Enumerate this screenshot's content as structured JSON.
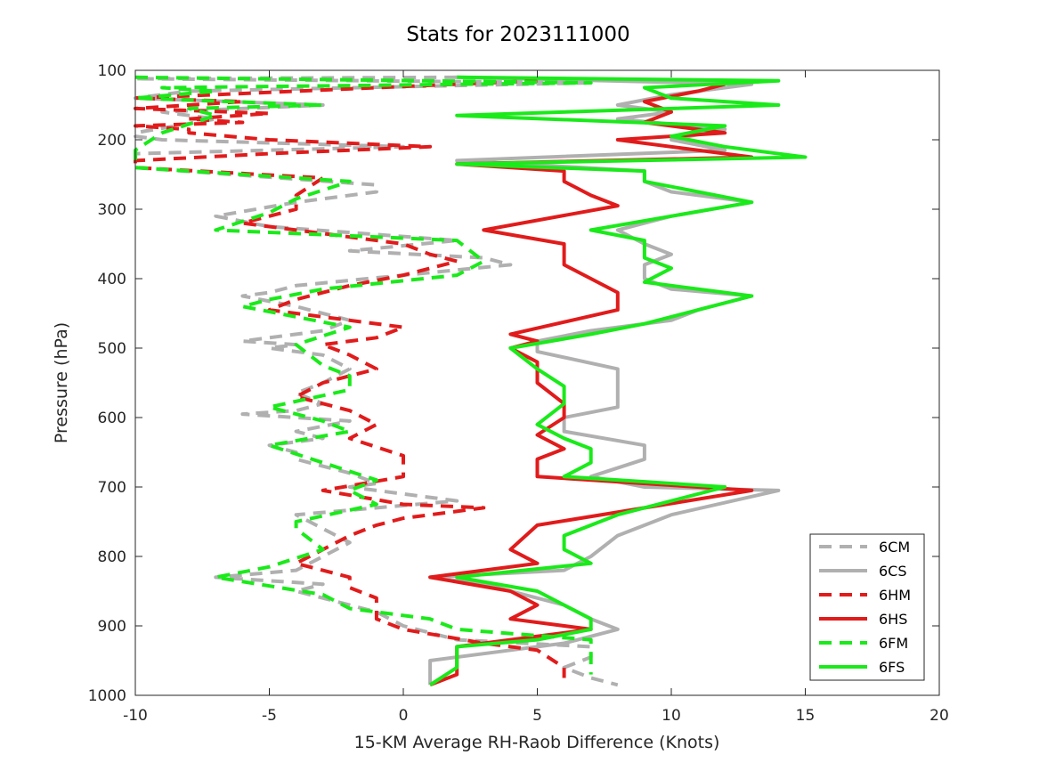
{
  "chart_data": {
    "type": "line",
    "title": "Stats for 2023111000",
    "xlabel": "15-KM Average RH-Raob Difference (Knots)",
    "ylabel": "Pressure (hPa)",
    "xlim": [
      -10,
      20
    ],
    "ylim": [
      100,
      1000
    ],
    "y_reversed": true,
    "grid": false,
    "legend_position": "bottom-right",
    "x_ticks": [
      -10,
      -5,
      0,
      5,
      10,
      15,
      20
    ],
    "y_ticks": [
      100,
      200,
      300,
      400,
      500,
      600,
      700,
      800,
      900,
      1000
    ],
    "series": [
      {
        "name": "6CM",
        "color": "#b0b0b0",
        "dash": true,
        "points": [
          [
            2,
            110
          ],
          [
            -10,
            112
          ],
          [
            7,
            118
          ],
          [
            -8,
            130
          ],
          [
            -10,
            140
          ],
          [
            -3,
            150
          ],
          [
            -9,
            160
          ],
          [
            -8,
            165
          ],
          [
            -7,
            170
          ],
          [
            -10,
            190
          ],
          [
            -10,
            195
          ],
          [
            -9,
            200
          ],
          [
            0,
            210
          ],
          [
            -10,
            220
          ],
          [
            -10,
            235
          ],
          [
            -10,
            240
          ],
          [
            -1,
            265
          ],
          [
            -1,
            275
          ],
          [
            -4,
            290
          ],
          [
            -7,
            310
          ],
          [
            -5,
            325
          ],
          [
            2,
            345
          ],
          [
            -2,
            360
          ],
          [
            3,
            370
          ],
          [
            4,
            380
          ],
          [
            -4,
            410
          ],
          [
            -5,
            420
          ],
          [
            -6,
            425
          ],
          [
            -4,
            440
          ],
          [
            -2,
            460
          ],
          [
            -3,
            475
          ],
          [
            -6,
            490
          ],
          [
            -4,
            495
          ],
          [
            -5,
            500
          ],
          [
            -3,
            510
          ],
          [
            -2,
            530
          ],
          [
            -3,
            550
          ],
          [
            -4,
            565
          ],
          [
            -3,
            580
          ],
          [
            -4,
            590
          ],
          [
            -6,
            595
          ],
          [
            -2,
            605
          ],
          [
            -4,
            620
          ],
          [
            -3,
            630
          ],
          [
            -5,
            640
          ],
          [
            -4,
            650
          ],
          [
            -4,
            660
          ],
          [
            -2,
            680
          ],
          [
            -1,
            695
          ],
          [
            -2,
            700
          ],
          [
            2,
            720
          ],
          [
            -4,
            740
          ],
          [
            -3,
            760
          ],
          [
            -2,
            780
          ],
          [
            -3,
            800
          ],
          [
            -4,
            820
          ],
          [
            -7,
            830
          ],
          [
            -3,
            840
          ],
          [
            -4,
            850
          ],
          [
            -2,
            870
          ],
          [
            -1,
            880
          ],
          [
            0,
            900
          ],
          [
            2,
            920
          ],
          [
            7,
            930
          ],
          [
            7,
            945
          ],
          [
            6,
            960
          ],
          [
            7,
            975
          ],
          [
            8,
            985
          ]
        ]
      },
      {
        "name": "6CS",
        "color": "#b0b0b0",
        "dash": false,
        "points": [
          [
            2,
            110
          ],
          [
            13,
            120
          ],
          [
            10,
            135
          ],
          [
            8,
            150
          ],
          [
            10,
            160
          ],
          [
            8,
            170
          ],
          [
            12,
            185
          ],
          [
            10,
            200
          ],
          [
            12,
            215
          ],
          [
            2,
            230
          ],
          [
            9,
            245
          ],
          [
            9,
            260
          ],
          [
            10,
            275
          ],
          [
            13,
            290
          ],
          [
            10,
            310
          ],
          [
            8,
            330
          ],
          [
            9,
            350
          ],
          [
            10,
            365
          ],
          [
            9,
            380
          ],
          [
            9,
            400
          ],
          [
            10,
            415
          ],
          [
            13,
            425
          ],
          [
            11,
            445
          ],
          [
            10,
            460
          ],
          [
            7,
            475
          ],
          [
            5,
            490
          ],
          [
            5,
            505
          ],
          [
            8,
            530
          ],
          [
            8,
            545
          ],
          [
            8,
            565
          ],
          [
            8,
            585
          ],
          [
            6,
            600
          ],
          [
            6,
            620
          ],
          [
            9,
            640
          ],
          [
            9,
            660
          ],
          [
            7,
            685
          ],
          [
            9,
            700
          ],
          [
            14,
            705
          ],
          [
            10,
            740
          ],
          [
            8,
            770
          ],
          [
            7,
            800
          ],
          [
            6,
            820
          ],
          [
            1,
            830
          ],
          [
            3,
            840
          ],
          [
            6,
            870
          ],
          [
            7,
            890
          ],
          [
            8,
            905
          ],
          [
            6,
            925
          ],
          [
            4,
            935
          ],
          [
            1,
            950
          ],
          [
            1,
            970
          ],
          [
            1,
            985
          ]
        ]
      },
      {
        "name": "6HM",
        "color": "#e11b1b",
        "dash": true,
        "points": [
          [
            5,
            115
          ],
          [
            -10,
            140
          ],
          [
            -6,
            145
          ],
          [
            -10,
            155
          ],
          [
            -5,
            162
          ],
          [
            -8,
            170
          ],
          [
            -6,
            175
          ],
          [
            -10,
            180
          ],
          [
            -8,
            185
          ],
          [
            -8,
            190
          ],
          [
            -5,
            200
          ],
          [
            1,
            210
          ],
          [
            -5,
            220
          ],
          [
            -10,
            230
          ],
          [
            -10,
            240
          ],
          [
            -3,
            255
          ],
          [
            -4,
            280
          ],
          [
            -4,
            300
          ],
          [
            -6,
            320
          ],
          [
            -4,
            330
          ],
          [
            0,
            350
          ],
          [
            1,
            365
          ],
          [
            2,
            375
          ],
          [
            0,
            395
          ],
          [
            -2,
            410
          ],
          [
            -4,
            430
          ],
          [
            -5,
            445
          ],
          [
            -3,
            455
          ],
          [
            -2,
            460
          ],
          [
            0,
            470
          ],
          [
            -1,
            485
          ],
          [
            -3,
            495
          ],
          [
            -2,
            510
          ],
          [
            -1,
            530
          ],
          [
            -3,
            550
          ],
          [
            -4,
            570
          ],
          [
            -2,
            590
          ],
          [
            -1,
            610
          ],
          [
            -2,
            630
          ],
          [
            0,
            655
          ],
          [
            0,
            685
          ],
          [
            -3,
            705
          ],
          [
            0,
            725
          ],
          [
            3,
            730
          ],
          [
            0,
            745
          ],
          [
            -1,
            755
          ],
          [
            -2,
            770
          ],
          [
            -3,
            790
          ],
          [
            -4,
            810
          ],
          [
            -2,
            830
          ],
          [
            -2,
            845
          ],
          [
            -1,
            860
          ],
          [
            -1,
            880
          ],
          [
            -1,
            890
          ],
          [
            0,
            905
          ],
          [
            3,
            925
          ],
          [
            5,
            935
          ],
          [
            6,
            960
          ],
          [
            6,
            975
          ]
        ]
      },
      {
        "name": "6HS",
        "color": "#e11b1b",
        "dash": false,
        "points": [
          [
            12,
            120
          ],
          [
            11,
            130
          ],
          [
            9,
            145
          ],
          [
            10,
            160
          ],
          [
            9,
            175
          ],
          [
            12,
            190
          ],
          [
            8,
            200
          ],
          [
            13,
            225
          ],
          [
            2,
            235
          ],
          [
            6,
            245
          ],
          [
            6,
            260
          ],
          [
            7,
            280
          ],
          [
            8,
            295
          ],
          [
            3,
            330
          ],
          [
            6,
            350
          ],
          [
            6,
            365
          ],
          [
            6,
            380
          ],
          [
            7,
            400
          ],
          [
            8,
            420
          ],
          [
            8,
            445
          ],
          [
            4,
            480
          ],
          [
            5,
            490
          ],
          [
            4,
            500
          ],
          [
            5,
            520
          ],
          [
            5,
            550
          ],
          [
            6,
            580
          ],
          [
            6,
            600
          ],
          [
            5,
            625
          ],
          [
            6,
            645
          ],
          [
            5,
            660
          ],
          [
            5,
            685
          ],
          [
            13,
            705
          ],
          [
            5,
            755
          ],
          [
            4,
            790
          ],
          [
            5,
            810
          ],
          [
            1,
            830
          ],
          [
            4,
            850
          ],
          [
            5,
            870
          ],
          [
            4,
            890
          ],
          [
            7,
            905
          ],
          [
            4,
            920
          ],
          [
            2,
            930
          ],
          [
            2,
            950
          ],
          [
            2,
            970
          ],
          [
            1,
            985
          ]
        ]
      },
      {
        "name": "6FM",
        "color": "#1aea1a",
        "dash": true,
        "points": [
          [
            -10,
            110
          ],
          [
            7,
            118
          ],
          [
            -9,
            125
          ],
          [
            -7,
            130
          ],
          [
            -10,
            140
          ],
          [
            -3,
            150
          ],
          [
            -8,
            155
          ],
          [
            -7,
            165
          ],
          [
            -9,
            190
          ],
          [
            -10,
            215
          ],
          [
            -10,
            220
          ],
          [
            -10,
            240
          ],
          [
            -2,
            260
          ],
          [
            -4,
            285
          ],
          [
            -5,
            305
          ],
          [
            -7,
            330
          ],
          [
            2,
            345
          ],
          [
            3,
            375
          ],
          [
            2,
            395
          ],
          [
            -3,
            415
          ],
          [
            -5,
            430
          ],
          [
            -6,
            440
          ],
          [
            -2,
            470
          ],
          [
            -4,
            495
          ],
          [
            -3,
            525
          ],
          [
            -2,
            540
          ],
          [
            -2,
            560
          ],
          [
            -5,
            585
          ],
          [
            -3,
            605
          ],
          [
            -2,
            620
          ],
          [
            -5,
            640
          ],
          [
            -3,
            665
          ],
          [
            -1,
            690
          ],
          [
            -2,
            705
          ],
          [
            -1,
            725
          ],
          [
            -4,
            750
          ],
          [
            -4,
            760
          ],
          [
            -3,
            790
          ],
          [
            -5,
            815
          ],
          [
            -7,
            830
          ],
          [
            -3,
            855
          ],
          [
            -2,
            875
          ],
          [
            1,
            890
          ],
          [
            2,
            905
          ],
          [
            7,
            920
          ],
          [
            7,
            935
          ],
          [
            7,
            950
          ],
          [
            7,
            970
          ]
        ]
      },
      {
        "name": "6FS",
        "color": "#1aea1a",
        "dash": false,
        "points": [
          [
            2,
            110
          ],
          [
            14,
            115
          ],
          [
            9,
            125
          ],
          [
            10,
            140
          ],
          [
            14,
            150
          ],
          [
            2,
            165
          ],
          [
            12,
            180
          ],
          [
            10,
            195
          ],
          [
            12,
            210
          ],
          [
            15,
            225
          ],
          [
            2,
            235
          ],
          [
            9,
            245
          ],
          [
            9,
            260
          ],
          [
            11,
            275
          ],
          [
            13,
            290
          ],
          [
            7,
            330
          ],
          [
            9,
            345
          ],
          [
            9,
            370
          ],
          [
            10,
            385
          ],
          [
            9,
            405
          ],
          [
            13,
            425
          ],
          [
            11,
            445
          ],
          [
            9,
            465
          ],
          [
            7,
            480
          ],
          [
            4,
            500
          ],
          [
            5,
            530
          ],
          [
            6,
            555
          ],
          [
            6,
            580
          ],
          [
            5,
            610
          ],
          [
            6,
            630
          ],
          [
            7,
            645
          ],
          [
            7,
            665
          ],
          [
            6,
            685
          ],
          [
            12,
            700
          ],
          [
            8,
            740
          ],
          [
            6,
            770
          ],
          [
            6,
            790
          ],
          [
            7,
            810
          ],
          [
            2,
            830
          ],
          [
            5,
            850
          ],
          [
            6,
            870
          ],
          [
            7,
            890
          ],
          [
            7,
            905
          ],
          [
            5,
            920
          ],
          [
            2,
            930
          ],
          [
            2,
            960
          ],
          [
            1,
            985
          ]
        ]
      }
    ]
  }
}
